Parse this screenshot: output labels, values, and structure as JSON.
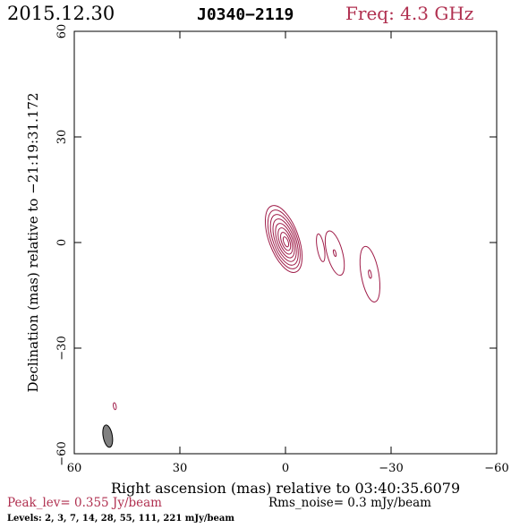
{
  "header": {
    "date": "2015.12.30",
    "source": "J0340−2119",
    "freq": "Freq: 4.3 GHz"
  },
  "footer": {
    "peak": "Peak_lev=  0.355 Jy/beam",
    "rms": "Rms_noise=  0.3 mJy/beam",
    "levels": "Levels:   2,   3,   7,  14,  28,  55, 111, 221 mJy/beam"
  },
  "colors": {
    "contour": "#a01e4a",
    "header_accent": "#b03050",
    "axis": "#000000",
    "beam_fill": "#808080"
  },
  "chart_data": {
    "type": "contour",
    "xlabel": "Right ascension (mas) relative to 03:40:35.6079",
    "ylabel": "Declination (mas) relative to −21:19:31.172",
    "xlim": [
      60,
      -60
    ],
    "ylim": [
      -60,
      60
    ],
    "xticks": [
      60,
      30,
      0,
      -30,
      -60
    ],
    "yticks": [
      60,
      30,
      0,
      -30,
      -60
    ],
    "xtick_labels": [
      "60",
      "30",
      "0",
      "−30",
      "−60"
    ],
    "ytick_labels": [
      "60",
      "30",
      "0",
      "−30",
      "−60"
    ],
    "peak_jy_per_beam": 0.355,
    "rms_mjy_per_beam": 0.3,
    "levels_mjy_per_beam": [
      2,
      3,
      7,
      14,
      28,
      55,
      111,
      221
    ],
    "components": [
      {
        "ra": 0.5,
        "dec": 1.0,
        "major": 10.0,
        "minor": 4.2,
        "pa": 20,
        "n_contours": 8
      },
      {
        "ra": -10.0,
        "dec": -1.5,
        "major": 4.0,
        "minor": 1.0,
        "pa": 10,
        "n_contours": 1
      },
      {
        "ra": -14.0,
        "dec": -3.0,
        "major": 6.5,
        "minor": 2.2,
        "pa": 15,
        "n_contours": 2
      },
      {
        "ra": -24.0,
        "dec": -9.0,
        "major": 8.0,
        "minor": 2.5,
        "pa": 10,
        "n_contours": 2
      },
      {
        "ra": 48.5,
        "dec": -46.5,
        "major": 1.0,
        "minor": 0.4,
        "pa": 10,
        "n_contours": 1
      }
    ],
    "beam": {
      "ra": 50.5,
      "dec": -55.0,
      "major": 3.2,
      "minor": 1.3,
      "pa": 10
    }
  }
}
